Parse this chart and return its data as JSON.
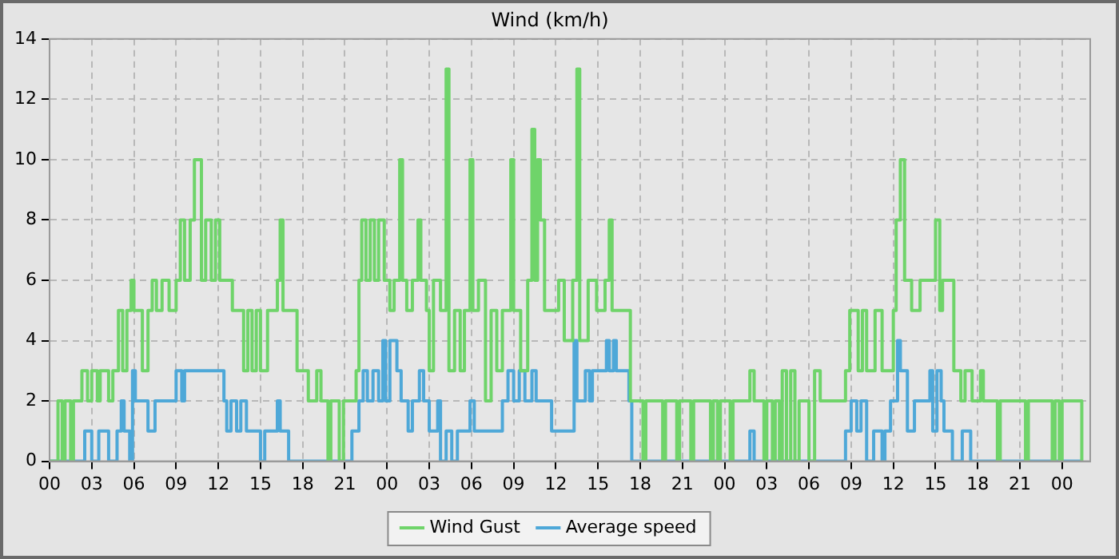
{
  "chart_data": {
    "type": "step",
    "title": "Wind (km/h)",
    "xlim": [
      0,
      74
    ],
    "ylim": [
      0,
      14
    ],
    "xticks": [
      {
        "value": 0,
        "label": "00"
      },
      {
        "value": 3,
        "label": "03"
      },
      {
        "value": 6,
        "label": "06"
      },
      {
        "value": 9,
        "label": "09"
      },
      {
        "value": 12,
        "label": "12"
      },
      {
        "value": 15,
        "label": "15"
      },
      {
        "value": 18,
        "label": "18"
      },
      {
        "value": 21,
        "label": "21"
      },
      {
        "value": 24,
        "label": "00"
      },
      {
        "value": 27,
        "label": "03"
      },
      {
        "value": 30,
        "label": "06"
      },
      {
        "value": 33,
        "label": "09"
      },
      {
        "value": 36,
        "label": "12"
      },
      {
        "value": 39,
        "label": "15"
      },
      {
        "value": 42,
        "label": "18"
      },
      {
        "value": 45,
        "label": "21"
      },
      {
        "value": 48,
        "label": "00"
      },
      {
        "value": 51,
        "label": "03"
      },
      {
        "value": 54,
        "label": "06"
      },
      {
        "value": 57,
        "label": "09"
      },
      {
        "value": 60,
        "label": "12"
      },
      {
        "value": 63,
        "label": "15"
      },
      {
        "value": 66,
        "label": "18"
      },
      {
        "value": 69,
        "label": "21"
      },
      {
        "value": 72,
        "label": "00"
      }
    ],
    "yticks": [
      0,
      2,
      4,
      6,
      8,
      10,
      12,
      14
    ],
    "grid": true,
    "legend": "bottom",
    "marker": "none",
    "series": [
      {
        "name": "Wind Gust",
        "color": "#6fd46a",
        "x": [
          0,
          0.6,
          0.9,
          1.1,
          1.5,
          1.7,
          2.3,
          2.7,
          3,
          3.4,
          3.6,
          4.2,
          4.5,
          4.9,
          5.2,
          5.5,
          5.8,
          6,
          6.6,
          7,
          7.3,
          7.6,
          8,
          8.5,
          9,
          9.3,
          9.6,
          10,
          10.3,
          10.8,
          11.1,
          11.5,
          11.8,
          12.1,
          13,
          13.8,
          14.1,
          14.4,
          14.7,
          15,
          15.5,
          16.2,
          16.4,
          16.6,
          17.2,
          17.6,
          18.4,
          19,
          19.3,
          19.8,
          20,
          20.6,
          20.9,
          21.8,
          22,
          22.2,
          22.5,
          22.8,
          23.1,
          23.4,
          23.8,
          24.2,
          24.5,
          24.9,
          25.1,
          25.4,
          25.8,
          26.2,
          26.4,
          26.8,
          27,
          27.3,
          27.8,
          28.2,
          28.4,
          28.8,
          29.2,
          29.5,
          29.9,
          30.1,
          30.5,
          31,
          31.4,
          31.8,
          32.2,
          32.8,
          33,
          33.5,
          34,
          34.3,
          34.5,
          34.7,
          34.9,
          35.2,
          36.2,
          36.6,
          37.2,
          37.5,
          37.7,
          38.3,
          38.9,
          39.5,
          39.8,
          40,
          41.3,
          42.2,
          42.4,
          43.6,
          43.8,
          44.6,
          44.8,
          45.6,
          45.8,
          47,
          47.2,
          47.5,
          47.7,
          48.4,
          48.6,
          49.8,
          50.1,
          50.8,
          51,
          51.4,
          51.6,
          51.9,
          52.1,
          52.4,
          52.7,
          53,
          53.3,
          54,
          54.4,
          54.8,
          56.6,
          56.9,
          57.5,
          57.8,
          58.1,
          58.7,
          59.2,
          60,
          60.2,
          60.5,
          60.8,
          61.3,
          61.9,
          63,
          63.3,
          63.5,
          64.3,
          64.8,
          65.1,
          65.6,
          66.2,
          66.4,
          67.4,
          67.6,
          69.4,
          69.6,
          71.3,
          71.5,
          71.8,
          72,
          73.4
        ],
        "values": [
          0,
          2,
          0,
          2,
          0,
          2,
          3,
          2,
          3,
          2,
          3,
          2,
          3,
          5,
          3,
          5,
          6,
          5,
          3,
          5,
          6,
          5,
          6,
          5,
          6,
          8,
          6,
          8,
          10,
          6,
          8,
          6,
          8,
          6,
          5,
          3,
          5,
          3,
          5,
          3,
          5,
          6,
          8,
          5,
          5,
          3,
          2,
          3,
          2,
          0,
          2,
          0,
          2,
          3,
          6,
          8,
          6,
          8,
          6,
          8,
          6,
          5,
          6,
          10,
          6,
          5,
          6,
          8,
          6,
          5,
          3,
          6,
          5,
          13,
          3,
          5,
          3,
          5,
          10,
          5,
          6,
          2,
          5,
          3,
          5,
          10,
          5,
          3,
          6,
          11,
          6,
          10,
          8,
          5,
          6,
          4,
          6,
          13,
          4,
          6,
          5,
          6,
          8,
          5,
          2,
          0,
          2,
          0,
          2,
          0,
          2,
          0,
          2,
          0,
          2,
          0,
          2,
          0,
          2,
          3,
          2,
          0,
          2,
          0,
          2,
          0,
          3,
          0,
          3,
          0,
          2,
          0,
          3,
          2,
          3,
          5,
          3,
          5,
          3,
          5,
          3,
          5,
          8,
          10,
          6,
          5,
          6,
          8,
          5,
          6,
          3,
          2,
          3,
          2,
          3,
          2,
          0,
          2,
          0,
          2,
          0,
          2,
          0,
          2,
          0
        ]
      },
      {
        "name": "Average speed",
        "color": "#4ea8d8",
        "x": [
          0,
          2.5,
          3,
          3.5,
          4.2,
          4.8,
          5.1,
          5.3,
          5.7,
          5.9,
          6.1,
          7,
          7.5,
          9,
          9.4,
          9.6,
          12.4,
          12.6,
          12.9,
          13.3,
          13.6,
          14,
          15,
          15.3,
          16.2,
          16.4,
          17,
          21.5,
          22,
          22.3,
          22.6,
          23,
          23.4,
          23.7,
          23.9,
          24.2,
          24.7,
          25,
          25.5,
          25.8,
          26.3,
          26.6,
          27,
          27.6,
          27.8,
          28.2,
          28.6,
          29,
          29.9,
          30.2,
          32.2,
          32.6,
          33,
          33.4,
          33.8,
          34.3,
          34.6,
          35.7,
          37.3,
          37.5,
          38.1,
          38.4,
          38.6,
          39.6,
          39.8,
          40.1,
          40.3,
          41.2,
          41.4,
          49.8,
          50.1,
          56.6,
          57,
          57.4,
          57.7,
          58.1,
          58.6,
          59.2,
          59.4,
          59.8,
          60.3,
          60.5,
          61,
          61.5,
          62.6,
          62.8,
          63.1,
          63.4,
          63.6,
          64.2,
          64.9,
          65.5,
          73.4
        ],
        "values": [
          0,
          1,
          0,
          1,
          0,
          1,
          2,
          1,
          0,
          3,
          2,
          1,
          2,
          3,
          2,
          3,
          2,
          1,
          2,
          1,
          2,
          1,
          0,
          1,
          2,
          1,
          0,
          1,
          2,
          3,
          2,
          3,
          2,
          4,
          2,
          4,
          3,
          2,
          1,
          2,
          3,
          2,
          1,
          2,
          0,
          1,
          0,
          1,
          2,
          1,
          2,
          3,
          2,
          3,
          2,
          3,
          2,
          1,
          4,
          2,
          3,
          2,
          3,
          4,
          3,
          4,
          3,
          2,
          0,
          1,
          0,
          1,
          2,
          1,
          2,
          0,
          1,
          0,
          1,
          2,
          4,
          3,
          1,
          2,
          3,
          1,
          3,
          2,
          1,
          0,
          1,
          0,
          0
        ]
      }
    ]
  }
}
